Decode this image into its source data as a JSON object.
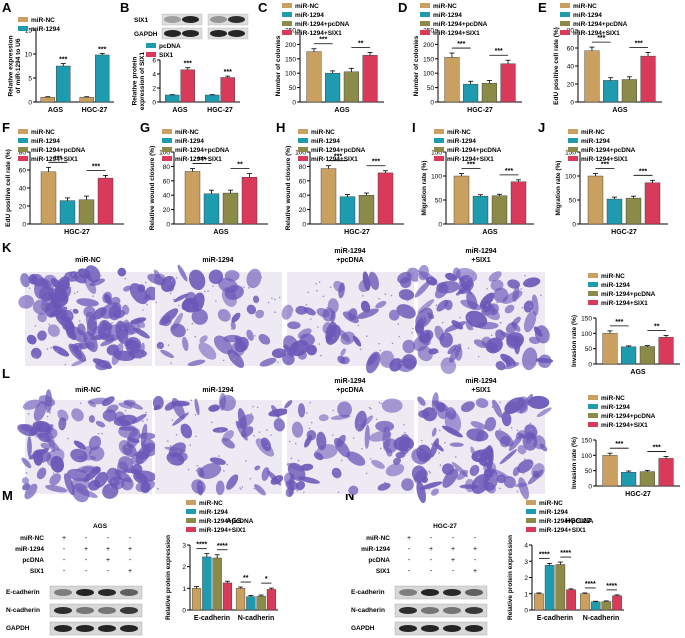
{
  "colors": {
    "miR-NC": "#c9a060",
    "miR-1294": "#1f9bb0",
    "miR-1294+pcDNA": "#8c8a48",
    "miR-1294+SIX1": "#d93a5a",
    "pcDNA": "#1f9bb0",
    "SIX1": "#d93a5a",
    "stain": "#6a58b8"
  },
  "panel_letters": [
    "A",
    "B",
    "C",
    "D",
    "E",
    "F",
    "G",
    "H",
    "I",
    "J",
    "K",
    "L",
    "M",
    "N"
  ],
  "K": {
    "image_labels": [
      "miR-NC",
      "miR-1294",
      "miR-1294\n+pcDNA",
      "miR-1294\n+SIX1"
    ]
  },
  "L": {
    "image_labels": [
      "miR-NC",
      "miR-1294",
      "miR-1294\n+pcDNA",
      "miR-1294\n+SIX1"
    ]
  },
  "blot_B": {
    "rows": [
      "SIX1",
      "GAPDH"
    ]
  },
  "blot_M": {
    "title": "AGS",
    "cond_rows": [
      {
        "name": "miR-NC",
        "signs": [
          "+",
          "-",
          "-",
          "-"
        ]
      },
      {
        "name": "miR-1294",
        "signs": [
          "-",
          "+",
          "+",
          "+"
        ]
      },
      {
        "name": "pcDNA",
        "signs": [
          "-",
          "-",
          "+",
          "-"
        ]
      },
      {
        "name": "SIX1",
        "signs": [
          "-",
          "-",
          "-",
          "+"
        ]
      }
    ],
    "rows": [
      "E-cadherin",
      "N-cadherin",
      "GAPDH"
    ]
  },
  "blot_N": {
    "title": "HGC-27",
    "cond_rows": [
      {
        "name": "miR-NC",
        "signs": [
          "+",
          "-",
          "-",
          "-"
        ]
      },
      {
        "name": "miR-1294",
        "signs": [
          "-",
          "+",
          "+",
          "+"
        ]
      },
      {
        "name": "pcDNA",
        "signs": [
          "-",
          "-",
          "+",
          "-"
        ]
      },
      {
        "name": "SIX1",
        "signs": [
          "-",
          "-",
          "-",
          "+"
        ]
      }
    ],
    "rows": [
      "E-cadherin",
      "N-cadherin",
      "GAPDH"
    ]
  },
  "chart_data": [
    {
      "panel": "A",
      "type": "bar",
      "ylabel": "Relative expression\nof miR-1294 to U6",
      "categories": [
        "AGS",
        "HGC-27"
      ],
      "ylim": [
        0,
        15
      ],
      "yticks": [
        0,
        5,
        10,
        15
      ],
      "series": [
        {
          "name": "miR-NC",
          "values": [
            1,
            1
          ],
          "err": [
            0.1,
            0.1
          ]
        },
        {
          "name": "miR-1294",
          "values": [
            7.5,
            9.8
          ],
          "err": [
            0.5,
            0.3
          ]
        }
      ],
      "sig": [
        {
          "text": "***",
          "series": 1,
          "cat": 0
        },
        {
          "text": "***",
          "series": 1,
          "cat": 1
        }
      ],
      "legend": "top-left"
    },
    {
      "panel": "B",
      "type": "bar",
      "ylabel": "Relative protein\nexpression of SIX1",
      "categories": [
        "AGS",
        "HGC-27"
      ],
      "ylim": [
        0,
        6
      ],
      "yticks": [
        0,
        2,
        4,
        6
      ],
      "series": [
        {
          "name": "pcDNA",
          "values": [
            1,
            1
          ],
          "err": [
            0.05,
            0.05
          ]
        },
        {
          "name": "SIX1",
          "values": [
            4.6,
            3.5
          ],
          "err": [
            0.3,
            0.2
          ]
        }
      ],
      "sig": [
        {
          "text": "***",
          "series": 1,
          "cat": 0
        },
        {
          "text": "***",
          "series": 1,
          "cat": 1
        }
      ],
      "legend": "top-left"
    },
    {
      "panel": "C",
      "type": "bar",
      "ylabel": "Number of colonies",
      "xlabel": "AGS",
      "ylim": [
        0,
        250
      ],
      "yticks": [
        0,
        50,
        100,
        150,
        200,
        250
      ],
      "series": [
        {
          "name": "miR-NC",
          "values": [
            175
          ],
          "err": [
            10
          ]
        },
        {
          "name": "miR-1294",
          "values": [
            100
          ],
          "err": [
            8
          ]
        },
        {
          "name": "miR-1294+pcDNA",
          "values": [
            105
          ],
          "err": [
            12
          ]
        },
        {
          "name": "miR-1294+SIX1",
          "values": [
            162
          ],
          "err": [
            10
          ]
        }
      ],
      "brackets": [
        {
          "from": 0,
          "to": 1,
          "text": "***"
        },
        {
          "from": 2,
          "to": 3,
          "text": "**"
        }
      ]
    },
    {
      "panel": "D",
      "type": "bar",
      "ylabel": "Number of colonies",
      "xlabel": "HGC-27",
      "ylim": [
        0,
        250
      ],
      "yticks": [
        0,
        50,
        100,
        150,
        200,
        250
      ],
      "series": [
        {
          "name": "miR-NC",
          "values": [
            155
          ],
          "err": [
            15
          ]
        },
        {
          "name": "miR-1294",
          "values": [
            62
          ],
          "err": [
            10
          ]
        },
        {
          "name": "miR-1294+pcDNA",
          "values": [
            65
          ],
          "err": [
            10
          ]
        },
        {
          "name": "miR-1294+SIX1",
          "values": [
            133
          ],
          "err": [
            12
          ]
        }
      ],
      "brackets": [
        {
          "from": 0,
          "to": 1,
          "text": "***"
        },
        {
          "from": 2,
          "to": 3,
          "text": "***"
        }
      ]
    },
    {
      "panel": "E",
      "type": "bar",
      "ylabel": "EdU positive cell rate (%)",
      "xlabel": "AGS",
      "ylim": [
        0,
        80
      ],
      "yticks": [
        0,
        20,
        40,
        60,
        80
      ],
      "series": [
        {
          "name": "miR-NC",
          "values": [
            57
          ],
          "err": [
            4
          ]
        },
        {
          "name": "miR-1294",
          "values": [
            24
          ],
          "err": [
            3
          ]
        },
        {
          "name": "miR-1294+pcDNA",
          "values": [
            25
          ],
          "err": [
            3
          ]
        },
        {
          "name": "miR-1294+SIX1",
          "values": [
            51
          ],
          "err": [
            4
          ]
        }
      ],
      "brackets": [
        {
          "from": 0,
          "to": 1,
          "text": "***"
        },
        {
          "from": 2,
          "to": 3,
          "text": "***"
        }
      ]
    },
    {
      "panel": "F",
      "type": "bar",
      "ylabel": "EdU positive cell rate (%)",
      "xlabel": "HGC-27",
      "ylim": [
        0,
        80
      ],
      "yticks": [
        0,
        20,
        40,
        60,
        80
      ],
      "series": [
        {
          "name": "miR-NC",
          "values": [
            58
          ],
          "err": [
            5
          ]
        },
        {
          "name": "miR-1294",
          "values": [
            26
          ],
          "err": [
            3
          ]
        },
        {
          "name": "miR-1294+pcDNA",
          "values": [
            27
          ],
          "err": [
            4
          ]
        },
        {
          "name": "miR-1294+SIX1",
          "values": [
            51
          ],
          "err": [
            3
          ]
        }
      ],
      "brackets": [
        {
          "from": 0,
          "to": 1,
          "text": "***"
        },
        {
          "from": 2,
          "to": 3,
          "text": "***"
        }
      ]
    },
    {
      "panel": "G",
      "type": "bar",
      "ylabel": "Relative wound closure (%)",
      "xlabel": "AGS",
      "ylim": [
        0,
        100
      ],
      "yticks": [
        0,
        20,
        40,
        60,
        80,
        100
      ],
      "series": [
        {
          "name": "miR-NC",
          "values": [
            73
          ],
          "err": [
            4
          ]
        },
        {
          "name": "miR-1294",
          "values": [
            42
          ],
          "err": [
            5
          ]
        },
        {
          "name": "miR-1294+pcDNA",
          "values": [
            43
          ],
          "err": [
            4
          ]
        },
        {
          "name": "miR-1294+SIX1",
          "values": [
            65
          ],
          "err": [
            5
          ]
        }
      ],
      "brackets": [
        {
          "from": 0,
          "to": 1,
          "text": "***"
        },
        {
          "from": 2,
          "to": 3,
          "text": "**"
        }
      ]
    },
    {
      "panel": "H",
      "type": "bar",
      "ylabel": "Relative wound closure (%)",
      "xlabel": "HGC-27",
      "ylim": [
        0,
        100
      ],
      "yticks": [
        0,
        20,
        40,
        60,
        80,
        100
      ],
      "series": [
        {
          "name": "miR-NC",
          "values": [
            77
          ],
          "err": [
            4
          ]
        },
        {
          "name": "miR-1294",
          "values": [
            38
          ],
          "err": [
            3
          ]
        },
        {
          "name": "miR-1294+pcDNA",
          "values": [
            40
          ],
          "err": [
            3
          ]
        },
        {
          "name": "miR-1294+SIX1",
          "values": [
            71
          ],
          "err": [
            3
          ]
        }
      ],
      "brackets": [
        {
          "from": 0,
          "to": 1,
          "text": "***"
        },
        {
          "from": 2,
          "to": 3,
          "text": "***"
        }
      ]
    },
    {
      "panel": "I",
      "type": "bar",
      "ylabel": "Migration rate (%)",
      "xlabel": "AGS",
      "ylim": [
        0,
        150
      ],
      "yticks": [
        0,
        50,
        100,
        150
      ],
      "series": [
        {
          "name": "miR-NC",
          "values": [
            100
          ],
          "err": [
            5
          ]
        },
        {
          "name": "miR-1294",
          "values": [
            58
          ],
          "err": [
            3
          ]
        },
        {
          "name": "miR-1294+pcDNA",
          "values": [
            59
          ],
          "err": [
            3
          ]
        },
        {
          "name": "miR-1294+SIX1",
          "values": [
            88
          ],
          "err": [
            4
          ]
        }
      ],
      "brackets": [
        {
          "from": 0,
          "to": 1,
          "text": "***"
        },
        {
          "from": 2,
          "to": 3,
          "text": "***"
        }
      ]
    },
    {
      "panel": "J",
      "type": "bar",
      "ylabel": "Migration rate (%)",
      "xlabel": "HGC-27",
      "ylim": [
        0,
        150
      ],
      "yticks": [
        0,
        50,
        100,
        150
      ],
      "series": [
        {
          "name": "miR-NC",
          "values": [
            100
          ],
          "err": [
            5
          ]
        },
        {
          "name": "miR-1294",
          "values": [
            52
          ],
          "err": [
            4
          ]
        },
        {
          "name": "miR-1294+pcDNA",
          "values": [
            54
          ],
          "err": [
            4
          ]
        },
        {
          "name": "miR-1294+SIX1",
          "values": [
            86
          ],
          "err": [
            5
          ]
        }
      ],
      "brackets": [
        {
          "from": 0,
          "to": 1,
          "text": "***"
        },
        {
          "from": 2,
          "to": 3,
          "text": "***"
        }
      ]
    },
    {
      "panel": "K-chart",
      "type": "bar",
      "ylabel": "Invasion rate (%)",
      "xlabel": "AGS",
      "ylim": [
        0,
        150
      ],
      "yticks": [
        0,
        50,
        100,
        150
      ],
      "series": [
        {
          "name": "miR-NC",
          "values": [
            100
          ],
          "err": [
            8
          ]
        },
        {
          "name": "miR-1294",
          "values": [
            56
          ],
          "err": [
            3
          ]
        },
        {
          "name": "miR-1294+pcDNA",
          "values": [
            57
          ],
          "err": [
            3
          ]
        },
        {
          "name": "miR-1294+SIX1",
          "values": [
            87
          ],
          "err": [
            6
          ]
        }
      ],
      "brackets": [
        {
          "from": 0,
          "to": 1,
          "text": "***"
        },
        {
          "from": 2,
          "to": 3,
          "text": "**"
        }
      ]
    },
    {
      "panel": "L-chart",
      "type": "bar",
      "ylabel": "Invasion rate (%)",
      "xlabel": "HGC-27",
      "ylim": [
        0,
        150
      ],
      "yticks": [
        0,
        50,
        100,
        150
      ],
      "series": [
        {
          "name": "miR-NC",
          "values": [
            100
          ],
          "err": [
            7
          ]
        },
        {
          "name": "miR-1294",
          "values": [
            45
          ],
          "err": [
            4
          ]
        },
        {
          "name": "miR-1294+pcDNA",
          "values": [
            47
          ],
          "err": [
            4
          ]
        },
        {
          "name": "miR-1294+SIX1",
          "values": [
            90
          ],
          "err": [
            6
          ]
        }
      ],
      "brackets": [
        {
          "from": 0,
          "to": 1,
          "text": "***"
        },
        {
          "from": 2,
          "to": 3,
          "text": "***"
        }
      ]
    },
    {
      "panel": "M-chart",
      "type": "bar",
      "title": "AGS",
      "ylabel": "Relative protein expression",
      "categories": [
        "E-cadherin",
        "N-cadherin"
      ],
      "ylim": [
        0,
        3
      ],
      "yticks": [
        0,
        1,
        2,
        3
      ],
      "series": [
        {
          "name": "miR-NC",
          "values": [
            1,
            1
          ],
          "err": [
            0.08,
            0.06
          ]
        },
        {
          "name": "miR-1294",
          "values": [
            2.45,
            0.62
          ],
          "err": [
            0.15,
            0.05
          ]
        },
        {
          "name": "miR-1294+pcDNA",
          "values": [
            2.4,
            0.64
          ],
          "err": [
            0.15,
            0.05
          ]
        },
        {
          "name": "miR-1294+SIX1",
          "values": [
            1.25,
            0.95
          ],
          "err": [
            0.08,
            0.06
          ]
        }
      ],
      "brackets": [
        {
          "cat": 0,
          "from": 0,
          "to": 1,
          "text": "****"
        },
        {
          "cat": 0,
          "from": 2,
          "to": 3,
          "text": "****"
        },
        {
          "cat": 1,
          "from": 0,
          "to": 1,
          "text": "**"
        },
        {
          "cat": 1,
          "from": 2,
          "to": 3,
          "text": "*"
        }
      ]
    },
    {
      "panel": "N-chart",
      "type": "bar",
      "title": "HGC-27",
      "ylabel": "Relative protein expression",
      "categories": [
        "E-cadherin",
        "N-cadherin"
      ],
      "ylim": [
        0,
        4
      ],
      "yticks": [
        0,
        1,
        2,
        3,
        4
      ],
      "series": [
        {
          "name": "miR-NC",
          "values": [
            1,
            1
          ],
          "err": [
            0.05,
            0.05
          ]
        },
        {
          "name": "miR-1294",
          "values": [
            2.75,
            0.5
          ],
          "err": [
            0.12,
            0.04
          ]
        },
        {
          "name": "miR-1294+pcDNA",
          "values": [
            2.8,
            0.52
          ],
          "err": [
            0.15,
            0.04
          ]
        },
        {
          "name": "miR-1294+SIX1",
          "values": [
            1.25,
            0.88
          ],
          "err": [
            0.05,
            0.05
          ]
        }
      ],
      "brackets": [
        {
          "cat": 0,
          "from": 0,
          "to": 1,
          "text": "****"
        },
        {
          "cat": 0,
          "from": 2,
          "to": 3,
          "text": "****"
        },
        {
          "cat": 1,
          "from": 0,
          "to": 1,
          "text": "****"
        },
        {
          "cat": 1,
          "from": 2,
          "to": 3,
          "text": "****"
        }
      ]
    }
  ]
}
